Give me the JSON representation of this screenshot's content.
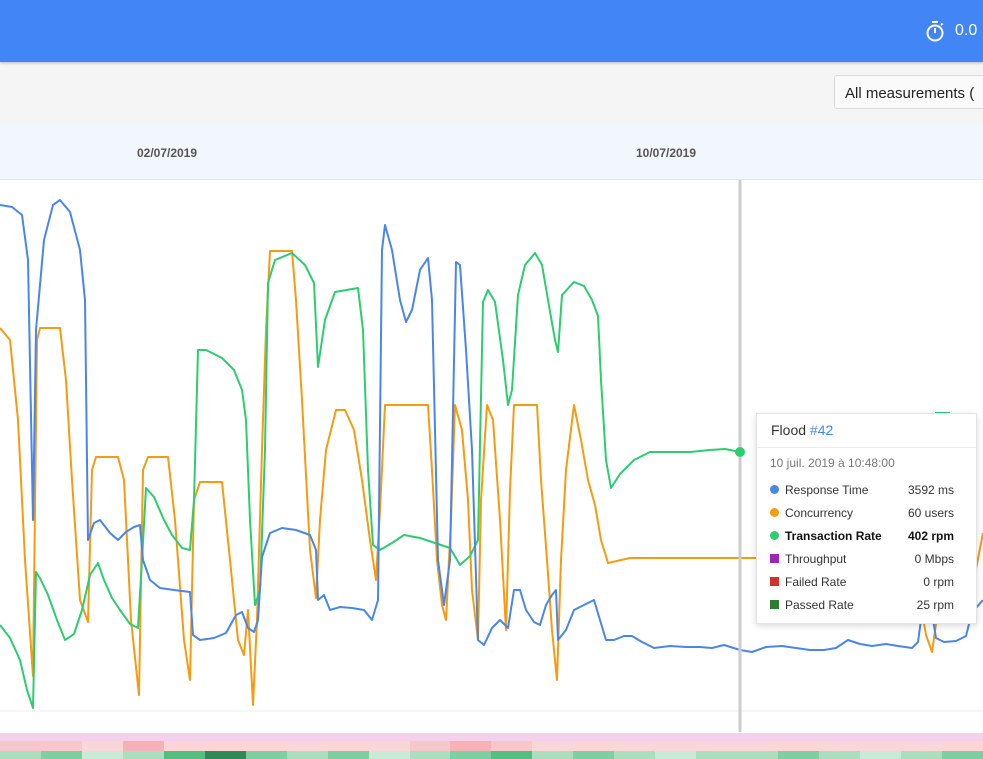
{
  "header": {
    "timer_text": "0.0",
    "timer_icon": "stopwatch-icon"
  },
  "toolbar": {
    "measurement_select": "All measurements ("
  },
  "timeline": {
    "ticks": [
      {
        "label": "02/07/2019"
      },
      {
        "label": "10/07/2019"
      }
    ]
  },
  "chart_data": {
    "type": "line",
    "x_unit": "time",
    "series": [
      {
        "name": "Response Time",
        "color": "#4a86e8"
      },
      {
        "name": "Concurrency",
        "color": "#f39c12"
      },
      {
        "name": "Transaction Rate",
        "color": "#2ecc71"
      }
    ]
  },
  "tooltip": {
    "title": "Flood",
    "title_link": "#42",
    "timestamp": "10 juil. 2019 à 10:48:00",
    "rows": [
      {
        "label": "Response Time",
        "value": "3592 ms",
        "color": "#4a86e8",
        "marker": "dot"
      },
      {
        "label": "Concurrency",
        "value": "60 users",
        "color": "#f39c12",
        "marker": "dot"
      },
      {
        "label": "Transaction Rate",
        "value": "402 rpm",
        "color": "#2ecc71",
        "marker": "dot",
        "highlight": true
      },
      {
        "label": "Throughput",
        "value": "0 Mbps",
        "color": "#9c27b0",
        "marker": "square"
      },
      {
        "label": "Failed Rate",
        "value": "0 rpm",
        "color": "#d32f2f",
        "marker": "square"
      },
      {
        "label": "Passed Rate",
        "value": "25 rpm",
        "color": "#2e7d32",
        "marker": "square"
      }
    ]
  }
}
